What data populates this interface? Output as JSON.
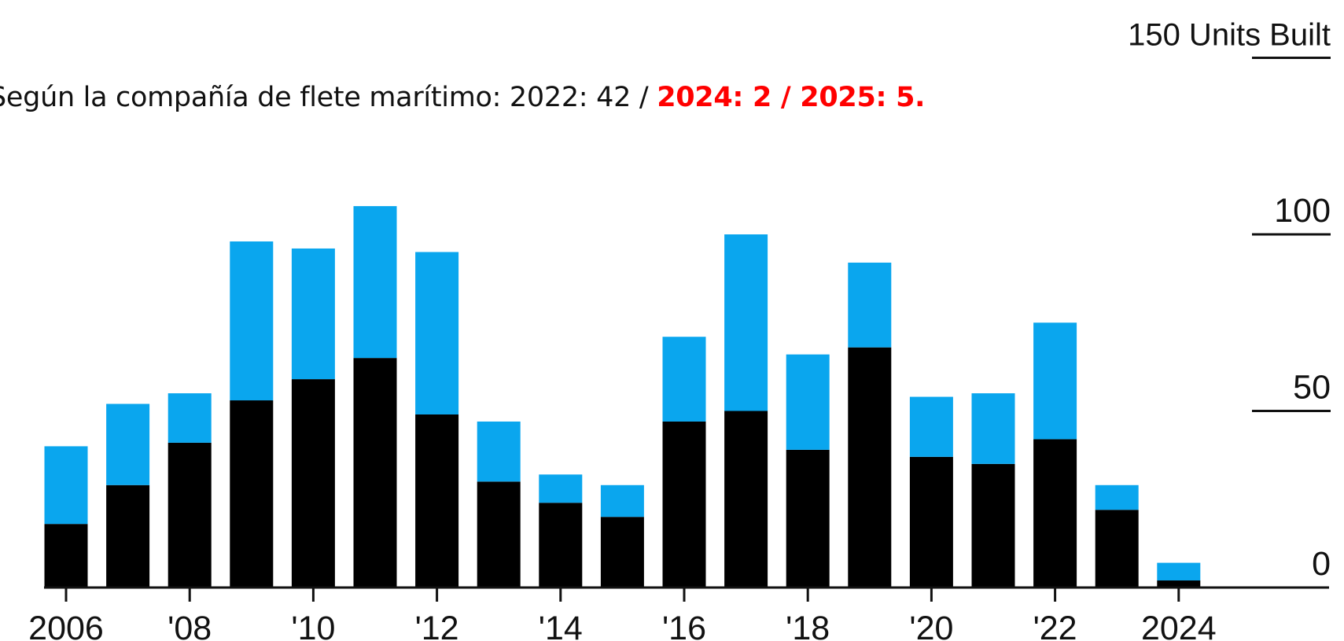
{
  "annotation": {
    "prefix": "Según la compañía de flete marítimo: 2022: 42 / ",
    "highlight": "2024: 2 / 2025: 5."
  },
  "colors": {
    "series_bottom": "#000000",
    "series_top": "#0aa6ee",
    "highlight_text": "#ff0000",
    "axis": "#111111"
  },
  "chart_data": {
    "type": "bar",
    "stacked": true,
    "categories": [
      "2006",
      "2007",
      "2008",
      "2009",
      "2010",
      "2011",
      "2012",
      "2013",
      "2014",
      "2015",
      "2016",
      "2017",
      "2018",
      "2019",
      "2020",
      "2021",
      "2022",
      "2023",
      "2024"
    ],
    "x_tick_labels": [
      {
        "category": "2006",
        "label": "2006"
      },
      {
        "category": "2008",
        "label": "'08"
      },
      {
        "category": "2010",
        "label": "'10"
      },
      {
        "category": "2012",
        "label": "'12"
      },
      {
        "category": "2014",
        "label": "'14"
      },
      {
        "category": "2016",
        "label": "'16"
      },
      {
        "category": "2018",
        "label": "'18"
      },
      {
        "category": "2020",
        "label": "'20"
      },
      {
        "category": "2022",
        "label": "'22"
      },
      {
        "category": "2024",
        "label": "2024"
      }
    ],
    "series": [
      {
        "values": [
          18,
          29,
          41,
          53,
          59,
          65,
          49,
          30,
          24,
          20,
          47,
          50,
          39,
          68,
          37,
          35,
          42,
          22,
          2
        ]
      },
      {
        "values": [
          22,
          23,
          14,
          45,
          37,
          43,
          46,
          17,
          8,
          9,
          24,
          50,
          27,
          24,
          17,
          20,
          33,
          7,
          5
        ]
      }
    ],
    "ylim": [
      0,
      150
    ],
    "y_ticks": [
      {
        "value": 0,
        "label": "0"
      },
      {
        "value": 50,
        "label": "50"
      },
      {
        "value": 100,
        "label": "100"
      },
      {
        "value": 150,
        "label": "150 Units Built"
      }
    ],
    "xlabel": "",
    "ylabel": "",
    "title": "",
    "grid": false,
    "y_axis_position": "right"
  }
}
